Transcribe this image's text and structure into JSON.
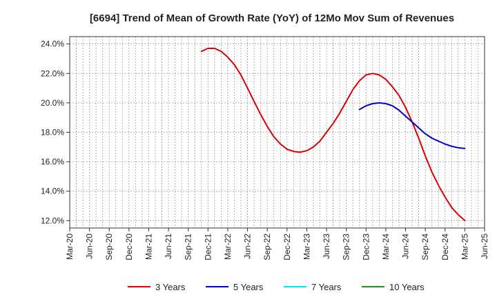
{
  "chart_data": {
    "type": "line",
    "title": "[6694]  Trend of Mean of Growth Rate (YoY) of 12Mo Mov Sum of Revenues",
    "xlabel": "",
    "ylabel": "",
    "ylim": [
      11.5,
      24.5
    ],
    "y_ticks": [
      12.0,
      14.0,
      16.0,
      18.0,
      20.0,
      22.0,
      24.0
    ],
    "y_tick_labels": [
      "12.0%",
      "14.0%",
      "16.0%",
      "18.0%",
      "20.0%",
      "22.0%",
      "24.0%"
    ],
    "x_tick_labels": [
      "Mar-20",
      "Jun-20",
      "Sep-20",
      "Dec-20",
      "Mar-21",
      "Jun-21",
      "Sep-21",
      "Dec-21",
      "Mar-22",
      "Jun-22",
      "Sep-22",
      "Dec-22",
      "Mar-23",
      "Jun-23",
      "Sep-23",
      "Dec-23",
      "Mar-24",
      "Jun-24",
      "Sep-24",
      "Dec-24",
      "Mar-25",
      "Jun-25"
    ],
    "grid": true,
    "legend_position": "bottom",
    "series": [
      {
        "name": "3 Years",
        "color": "#dd0000",
        "x_start_index": 20,
        "values": [
          23.5,
          23.7,
          23.7,
          23.5,
          23.1,
          22.6,
          21.9,
          21.0,
          20.1,
          19.2,
          18.4,
          17.7,
          17.2,
          16.85,
          16.7,
          16.65,
          16.75,
          17.0,
          17.4,
          18.0,
          18.6,
          19.3,
          20.1,
          20.9,
          21.5,
          21.9,
          22.0,
          21.9,
          21.6,
          21.1,
          20.5,
          19.7,
          18.7,
          17.6,
          16.4,
          15.3,
          14.4,
          13.6,
          12.9,
          12.4,
          12.0
        ]
      },
      {
        "name": "5 Years",
        "color": "#0000cc",
        "x_start_index": 44,
        "values": [
          19.55,
          19.8,
          19.95,
          20.0,
          19.95,
          19.8,
          19.5,
          19.1,
          18.7,
          18.3,
          17.9,
          17.6,
          17.4,
          17.2,
          17.05,
          16.95,
          16.9
        ]
      },
      {
        "name": "7 Years",
        "color": "#00e5ee",
        "x_start_index": 0,
        "values": []
      },
      {
        "name": "10 Years",
        "color": "#228b22",
        "x_start_index": 0,
        "values": []
      }
    ]
  }
}
